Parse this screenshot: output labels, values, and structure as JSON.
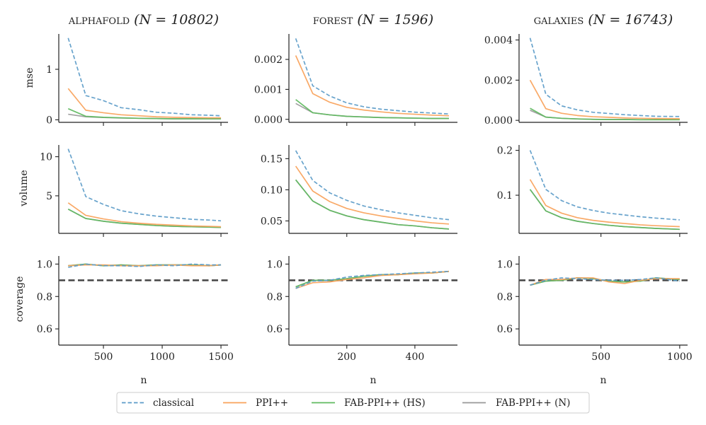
{
  "figure": {
    "columns": [
      {
        "title_word": "ALPHAFOLD",
        "title_stat": "(N = 10802)"
      },
      {
        "title_word": "FOREST",
        "title_stat": "(N = 1596)"
      },
      {
        "title_word": "GALAXIES",
        "title_stat": "(N = 16743)"
      }
    ],
    "row_labels": [
      "mse",
      "volume",
      "coverage"
    ],
    "xlabel": "n",
    "legend": [
      {
        "key": "classical",
        "label": "classical",
        "color": "#5b9bc8",
        "dash": true
      },
      {
        "key": "ppi",
        "label": "PPI++",
        "color": "#f9a25a",
        "dash": false
      },
      {
        "key": "fabhs",
        "label": "FAB-PPI++ (HS)",
        "color": "#5fba5f",
        "dash": false
      },
      {
        "key": "fabn",
        "label": "FAB-PPI++ (N)",
        "color": "#999999",
        "dash": false
      }
    ],
    "reference_line": {
      "value": 0.9,
      "color": "#444444"
    }
  },
  "chart_data": [
    {
      "type": "line",
      "panel": "alphafold-mse",
      "title": "ALPHAFOLD (N = 10802)",
      "xlabel": "",
      "ylabel": "mse",
      "x": [
        200,
        350,
        500,
        650,
        800,
        950,
        1100,
        1250,
        1400,
        1500
      ],
      "xlim": [
        120,
        1560
      ],
      "ylim": [
        -0.05,
        1.7
      ],
      "xticks": [
        500,
        1000,
        1500
      ],
      "xtick_labels": [
        "",
        "",
        ""
      ],
      "yticks": [
        0,
        1
      ],
      "ytick_labels": [
        "0",
        "1"
      ],
      "series": [
        {
          "name": "classical",
          "values": [
            1.62,
            0.48,
            0.38,
            0.24,
            0.2,
            0.15,
            0.13,
            0.1,
            0.09,
            0.08
          ]
        },
        {
          "name": "PPI++",
          "values": [
            0.62,
            0.19,
            0.14,
            0.1,
            0.08,
            0.06,
            0.05,
            0.045,
            0.04,
            0.04
          ]
        },
        {
          "name": "FAB-PPI++ (HS)",
          "values": [
            0.22,
            0.07,
            0.05,
            0.04,
            0.03,
            0.025,
            0.02,
            0.02,
            0.02,
            0.02
          ]
        },
        {
          "name": "FAB-PPI++ (N)",
          "values": [
            0.11,
            0.06,
            0.045,
            0.035,
            0.03,
            0.025,
            0.02,
            0.02,
            0.02,
            0.02
          ]
        }
      ]
    },
    {
      "type": "line",
      "panel": "forest-mse",
      "title": "FOREST (N = 1596)",
      "xlabel": "",
      "ylabel": "",
      "x": [
        50,
        100,
        150,
        200,
        250,
        300,
        350,
        400,
        450,
        500
      ],
      "xlim": [
        30,
        525
      ],
      "ylim": [
        -0.0001,
        0.00285
      ],
      "xticks": [
        200,
        400
      ],
      "xtick_labels": [
        "",
        ""
      ],
      "yticks": [
        0,
        0.001,
        0.002
      ],
      "ytick_labels": [
        "0.000",
        "0.001",
        "0.002"
      ],
      "series": [
        {
          "name": "classical",
          "values": [
            0.0027,
            0.00112,
            0.00078,
            0.00055,
            0.00042,
            0.00034,
            0.00029,
            0.00024,
            0.00021,
            0.00018
          ]
        },
        {
          "name": "PPI++",
          "values": [
            0.00213,
            0.00086,
            0.00057,
            0.0004,
            0.00031,
            0.00025,
            0.0002,
            0.00017,
            0.00014,
            0.00012
          ]
        },
        {
          "name": "FAB-PPI++ (HS)",
          "values": [
            0.00066,
            0.00022,
            0.00015,
            0.0001,
            8e-05,
            6e-05,
            5e-05,
            4e-05,
            3e-05,
            3e-05
          ]
        },
        {
          "name": "FAB-PPI++ (N)",
          "values": [
            0.00053,
            0.00022,
            0.00015,
            0.0001,
            8e-05,
            6e-05,
            5e-05,
            4e-05,
            3e-05,
            3e-05
          ]
        }
      ]
    },
    {
      "type": "line",
      "panel": "galaxies-mse",
      "title": "GALAXIES (N = 16743)",
      "xlabel": "",
      "ylabel": "",
      "x": [
        50,
        150,
        250,
        350,
        450,
        550,
        650,
        750,
        850,
        1000
      ],
      "xlim": [
        -20,
        1050
      ],
      "ylim": [
        -0.0001,
        0.0043
      ],
      "xticks": [
        500,
        1000
      ],
      "xtick_labels": [
        "",
        ""
      ],
      "yticks": [
        0,
        0.002,
        0.004
      ],
      "ytick_labels": [
        "0.000",
        "0.002",
        "0.004"
      ],
      "series": [
        {
          "name": "classical",
          "values": [
            0.0041,
            0.0013,
            0.00072,
            0.00052,
            0.0004,
            0.00034,
            0.00028,
            0.00024,
            0.0002,
            0.00019
          ]
        },
        {
          "name": "PPI++",
          "values": [
            0.002,
            0.00058,
            0.00035,
            0.00024,
            0.00018,
            0.00015,
            0.00012,
            0.0001,
            9e-05,
            8e-05
          ]
        },
        {
          "name": "FAB-PPI++ (HS)",
          "values": [
            0.0006,
            0.00016,
            0.0001,
            7e-05,
            5e-05,
            4e-05,
            4e-05,
            3e-05,
            3e-05,
            3e-05
          ]
        },
        {
          "name": "FAB-PPI++ (N)",
          "values": [
            0.0005,
            0.00016,
            0.0001,
            7e-05,
            5e-05,
            4e-05,
            4e-05,
            3e-05,
            3e-05,
            3e-05
          ]
        }
      ]
    },
    {
      "type": "line",
      "panel": "alphafold-volume",
      "title": "",
      "xlabel": "",
      "ylabel": "volume",
      "x": [
        200,
        350,
        500,
        650,
        800,
        950,
        1100,
        1250,
        1400,
        1500
      ],
      "xlim": [
        120,
        1560
      ],
      "ylim": [
        0.2,
        11.5
      ],
      "xticks": [
        500,
        1000,
        1500
      ],
      "xtick_labels": [
        "",
        "",
        ""
      ],
      "yticks": [
        5,
        10
      ],
      "ytick_labels": [
        "5",
        "10"
      ],
      "series": [
        {
          "name": "classical",
          "values": [
            11.0,
            4.9,
            3.9,
            3.1,
            2.7,
            2.4,
            2.2,
            2.0,
            1.9,
            1.8
          ]
        },
        {
          "name": "PPI++",
          "values": [
            4.1,
            2.5,
            2.05,
            1.7,
            1.5,
            1.35,
            1.25,
            1.15,
            1.1,
            1.05
          ]
        },
        {
          "name": "FAB-PPI++ (HS)",
          "values": [
            3.3,
            2.1,
            1.75,
            1.5,
            1.35,
            1.2,
            1.1,
            1.05,
            1.0,
            0.95
          ]
        },
        {
          "name": "FAB-PPI++ (N)",
          "values": [
            3.3,
            2.1,
            1.75,
            1.5,
            1.35,
            1.2,
            1.1,
            1.05,
            1.0,
            0.95
          ]
        }
      ]
    },
    {
      "type": "line",
      "panel": "forest-volume",
      "title": "",
      "xlabel": "",
      "ylabel": "",
      "x": [
        50,
        100,
        150,
        200,
        250,
        300,
        350,
        400,
        450,
        500
      ],
      "xlim": [
        30,
        525
      ],
      "ylim": [
        0.03,
        0.172
      ],
      "xticks": [
        200,
        400
      ],
      "xtick_labels": [
        "",
        ""
      ],
      "yticks": [
        0.05,
        0.1,
        0.15
      ],
      "ytick_labels": [
        "0.05",
        "0.10",
        "0.15"
      ],
      "series": [
        {
          "name": "classical",
          "values": [
            0.163,
            0.115,
            0.095,
            0.083,
            0.074,
            0.068,
            0.063,
            0.059,
            0.055,
            0.052
          ]
        },
        {
          "name": "PPI++",
          "values": [
            0.138,
            0.098,
            0.081,
            0.07,
            0.063,
            0.058,
            0.054,
            0.05,
            0.047,
            0.045
          ]
        },
        {
          "name": "FAB-PPI++ (HS)",
          "values": [
            0.116,
            0.082,
            0.067,
            0.058,
            0.052,
            0.048,
            0.044,
            0.042,
            0.039,
            0.037
          ]
        },
        {
          "name": "FAB-PPI++ (N)",
          "values": [
            0.116,
            0.082,
            0.067,
            0.058,
            0.052,
            0.048,
            0.044,
            0.042,
            0.039,
            0.037
          ]
        }
      ]
    },
    {
      "type": "line",
      "panel": "galaxies-volume",
      "title": "",
      "xlabel": "",
      "ylabel": "",
      "x": [
        50,
        150,
        250,
        350,
        450,
        550,
        650,
        750,
        850,
        1000
      ],
      "xlim": [
        -20,
        1050
      ],
      "ylim": [
        0.015,
        0.212
      ],
      "xticks": [
        500,
        1000
      ],
      "xtick_labels": [
        "",
        ""
      ],
      "yticks": [
        0.1,
        0.2
      ],
      "ytick_labels": [
        "0.1",
        "0.2"
      ],
      "series": [
        {
          "name": "classical",
          "values": [
            0.2,
            0.113,
            0.088,
            0.074,
            0.066,
            0.06,
            0.056,
            0.052,
            0.049,
            0.045
          ]
        },
        {
          "name": "PPI++",
          "values": [
            0.135,
            0.077,
            0.06,
            0.05,
            0.044,
            0.04,
            0.037,
            0.034,
            0.032,
            0.03
          ]
        },
        {
          "name": "FAB-PPI++ (HS)",
          "values": [
            0.113,
            0.065,
            0.05,
            0.042,
            0.037,
            0.033,
            0.03,
            0.028,
            0.026,
            0.024
          ]
        },
        {
          "name": "FAB-PPI++ (N)",
          "values": [
            0.113,
            0.065,
            0.05,
            0.042,
            0.037,
            0.033,
            0.03,
            0.028,
            0.026,
            0.024
          ]
        }
      ]
    },
    {
      "type": "line",
      "panel": "alphafold-coverage",
      "title": "",
      "xlabel": "n",
      "ylabel": "coverage",
      "x": [
        200,
        350,
        500,
        650,
        800,
        950,
        1100,
        1250,
        1400,
        1500
      ],
      "xlim": [
        120,
        1560
      ],
      "ylim": [
        0.5,
        1.05
      ],
      "xticks": [
        500,
        1000,
        1500
      ],
      "xtick_labels": [
        "500",
        "1000",
        "1500"
      ],
      "yticks": [
        0.6,
        0.8,
        1.0
      ],
      "ytick_labels": [
        "0.6",
        "0.8",
        "1.0"
      ],
      "series": [
        {
          "name": "classical",
          "values": [
            0.98,
            1.0,
            0.99,
            0.99,
            0.985,
            0.995,
            0.99,
            1.0,
            0.995,
            0.995
          ]
        },
        {
          "name": "PPI++",
          "values": [
            0.99,
            0.995,
            0.995,
            0.99,
            0.99,
            0.99,
            0.995,
            0.99,
            0.99,
            0.995
          ]
        },
        {
          "name": "FAB-PPI++ (HS)",
          "values": [
            0.99,
            1.0,
            0.99,
            0.995,
            0.99,
            0.995,
            0.995,
            0.995,
            0.99,
            0.995
          ]
        },
        {
          "name": "FAB-PPI++ (N)",
          "values": [
            0.99,
            1.0,
            0.99,
            0.995,
            0.99,
            0.995,
            0.995,
            0.995,
            0.99,
            0.995
          ]
        }
      ]
    },
    {
      "type": "line",
      "panel": "forest-coverage",
      "title": "",
      "xlabel": "n",
      "ylabel": "",
      "x": [
        50,
        100,
        150,
        200,
        250,
        300,
        350,
        400,
        450,
        500
      ],
      "xlim": [
        30,
        525
      ],
      "ylim": [
        0.5,
        1.05
      ],
      "xticks": [
        200,
        400
      ],
      "xtick_labels": [
        "200",
        "400"
      ],
      "yticks": [
        0.6,
        0.8,
        1.0
      ],
      "ytick_labels": [
        "0.6",
        "0.8",
        "1.0"
      ],
      "series": [
        {
          "name": "classical",
          "values": [
            0.85,
            0.895,
            0.9,
            0.92,
            0.93,
            0.935,
            0.94,
            0.945,
            0.95,
            0.955
          ]
        },
        {
          "name": "PPI++",
          "values": [
            0.85,
            0.885,
            0.89,
            0.905,
            0.915,
            0.93,
            0.935,
            0.94,
            0.945,
            0.955
          ]
        },
        {
          "name": "FAB-PPI++ (HS)",
          "values": [
            0.86,
            0.9,
            0.9,
            0.91,
            0.925,
            0.935,
            0.935,
            0.945,
            0.945,
            0.955
          ]
        },
        {
          "name": "FAB-PPI++ (N)",
          "values": [
            0.86,
            0.9,
            0.9,
            0.91,
            0.925,
            0.935,
            0.935,
            0.945,
            0.945,
            0.955
          ]
        }
      ]
    },
    {
      "type": "line",
      "panel": "galaxies-coverage",
      "title": "",
      "xlabel": "n",
      "ylabel": "",
      "x": [
        50,
        150,
        250,
        350,
        450,
        550,
        650,
        750,
        850,
        1000
      ],
      "xlim": [
        -20,
        1050
      ],
      "ylim": [
        0.5,
        1.05
      ],
      "xticks": [
        500,
        1000
      ],
      "xtick_labels": [
        "500",
        "1000"
      ],
      "yticks": [
        0.6,
        0.8,
        1.0
      ],
      "ytick_labels": [
        "0.6",
        "0.8",
        "1.0"
      ],
      "series": [
        {
          "name": "classical",
          "values": [
            0.87,
            0.9,
            0.915,
            0.91,
            0.905,
            0.9,
            0.9,
            0.905,
            0.915,
            0.895
          ]
        },
        {
          "name": "PPI++",
          "values": [
            0.87,
            0.905,
            0.905,
            0.915,
            0.915,
            0.89,
            0.88,
            0.9,
            0.91,
            0.91
          ]
        },
        {
          "name": "FAB-PPI++ (HS)",
          "values": [
            0.87,
            0.895,
            0.9,
            0.915,
            0.91,
            0.895,
            0.89,
            0.895,
            0.915,
            0.905
          ]
        },
        {
          "name": "FAB-PPI++ (N)",
          "values": [
            0.87,
            0.895,
            0.9,
            0.915,
            0.91,
            0.895,
            0.89,
            0.895,
            0.915,
            0.905
          ]
        }
      ]
    }
  ]
}
